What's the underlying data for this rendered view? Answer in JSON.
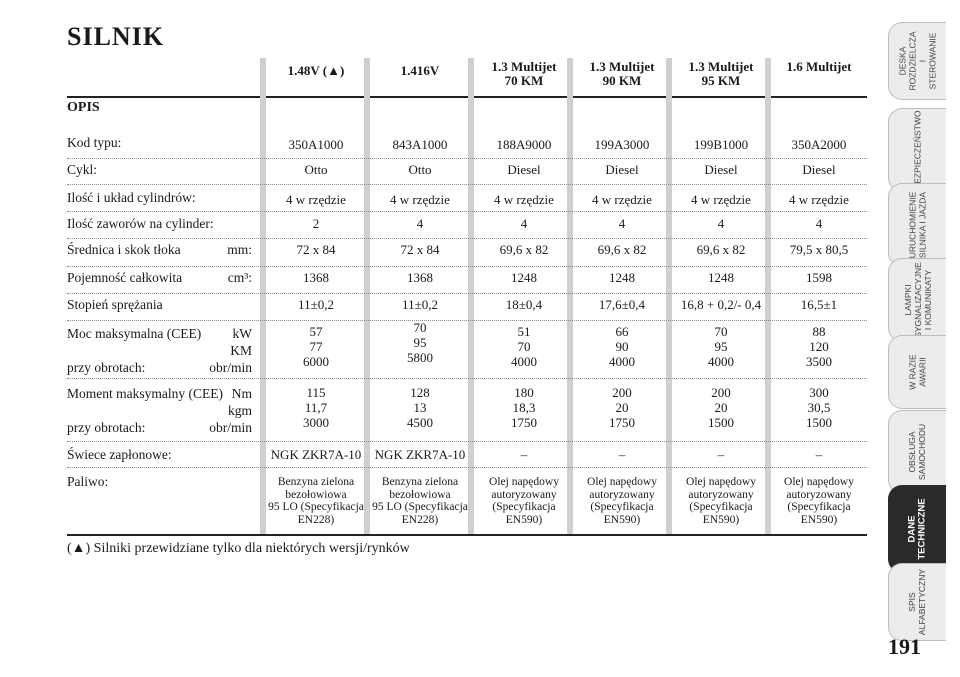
{
  "title": "SILNIK",
  "columns": [
    "1.48V (▲)",
    "1.416V",
    "1.3 Multijet\n70 KM",
    "1.3 Multijet\n90 KM",
    "1.3 Multijet\n95 KM",
    "1.6 Multijet"
  ],
  "section_label": "OPIS",
  "rows": [
    {
      "label": "Kod typu:",
      "values": [
        "350A1000",
        "843A1000",
        "188A9000",
        "199A3000",
        "199B1000",
        "350A2000"
      ]
    },
    {
      "label": "Cykl:",
      "values": [
        "Otto",
        "Otto",
        "Diesel",
        "Diesel",
        "Diesel",
        "Diesel"
      ]
    },
    {
      "label": "Ilość i układ cylindrów:",
      "values": [
        "4 w rzędzie",
        "4 w rzędzie",
        "4 w rzędzie",
        "4 w rzędzie",
        "4 w rzędzie",
        "4 w rzędzie"
      ]
    },
    {
      "label": "Ilość zaworów na cylinder:",
      "values": [
        "2",
        "4",
        "4",
        "4",
        "4",
        "4"
      ]
    },
    {
      "label": "Średnica i skok tłoka",
      "unit": "mm:",
      "values": [
        "72 x 84",
        "72 x 84",
        "69,6 x 82",
        "69,6 x 82",
        "69,6 x 82",
        "79,5 x 80,5"
      ]
    },
    {
      "label": "Pojemność całkowita",
      "unit": "cm³:",
      "values": [
        "1368",
        "1368",
        "1248",
        "1248",
        "1248",
        "1598"
      ]
    },
    {
      "label": "Stopień sprężania",
      "values": [
        "11±0,2",
        "11±0,2",
        "18±0,4",
        "17,6±0,4",
        "16,8 + 0,2/- 0,4",
        "16,5±1"
      ]
    },
    {
      "label": "Moc maksymalna (CEE)",
      "unit": "kW",
      "unit2": "KM",
      "label2": "przy obrotach:",
      "unit3": "obr/min",
      "values": [
        "57\n77\n6000",
        "70\n95\n5800",
        "51\n70\n4000",
        "66\n90\n4000",
        "70\n95\n4000",
        "88\n120\n3500"
      ]
    },
    {
      "label": "Moment maksymalny (CEE)",
      "unit": "Nm",
      "unit2": "kgm",
      "label2": "przy obrotach:",
      "unit3": "obr/min",
      "values": [
        "115\n11,7\n3000",
        "128\n13\n4500",
        "180\n18,3\n1750",
        "200\n20\n1750",
        "200\n20\n1500",
        "300\n30,5\n1500"
      ]
    },
    {
      "label": "Świece zapłonowe:",
      "values": [
        "NGK ZKR7A-10",
        "NGK ZKR7A-10",
        "–",
        "–",
        "–",
        "–"
      ]
    },
    {
      "label": "Paliwo:",
      "values": [
        "Benzyna zielona\nbezołowiowa\n95 LO (Specyfikacja\nEN228)",
        "Benzyna zielona\nbezołowiowa\n95 LO (Specyfikacja\nEN228)",
        "Olej napędowy\nautoryzowany\n(Specyfikacja\nEN590)",
        "Olej napędowy\nautoryzowany\n(Specyfikacja\nEN590)",
        "Olej napędowy\nautoryzowany\n(Specyfikacja\nEN590)",
        "Olej napędowy\nautoryzowany\n(Specyfikacja\nEN590)"
      ]
    }
  ],
  "footnote": "(▲) Silniki przewidziane tylko dla niektórych wersji/rynków",
  "tabs": [
    {
      "label": "DESKA\nROZDZIELCZA\nI STEROWANIE",
      "active": false
    },
    {
      "label": "BEZPIECZEŃSTWO",
      "active": false
    },
    {
      "label": "URUCHOMIENIE\nSILNIKA I JAZDA",
      "active": false
    },
    {
      "label": "LAMPKI\nSYGNALIZACYJNE\nI KOMUNIKATY",
      "active": false
    },
    {
      "label": "W RAZIE\nAWARII",
      "active": false
    },
    {
      "label": "OBSŁUGA\nSAMOCHODU",
      "active": false
    },
    {
      "label": "DANE\nTECHNICZNE",
      "active": true
    },
    {
      "label": "SPIS\nALFABETYCZNY",
      "active": false
    }
  ],
  "page_number": "191"
}
